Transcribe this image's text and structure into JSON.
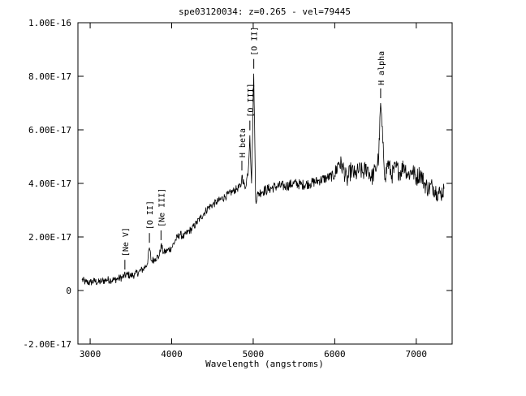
{
  "chart_data": {
    "type": "line",
    "title": "spe03120034: z=0.265 - vel=79445",
    "xlabel": "Wavelength (angstroms)",
    "ylabel": "",
    "xlim": [
      2850,
      7440
    ],
    "ylim": [
      -2e-17,
      1e-16
    ],
    "xticks": [
      3000,
      4000,
      5000,
      6000,
      7000
    ],
    "xtick_labels": [
      "3000",
      "4000",
      "5000",
      "6000",
      "7000"
    ],
    "yticks": [
      -2e-17,
      0,
      2e-17,
      4e-17,
      6e-17,
      8e-17,
      1e-16
    ],
    "ytick_labels": [
      "-2.00E-17",
      "0",
      "2.00E-17",
      "4.00E-17",
      "6.00E-17",
      "8.00E-17",
      "1.00E-16"
    ],
    "grid": false,
    "line_color": "#000000",
    "series": [
      {
        "name": "",
        "x": [
          2900,
          2950,
          3000,
          3050,
          3100,
          3150,
          3200,
          3250,
          3300,
          3350,
          3400,
          3450,
          3500,
          3550,
          3600,
          3650,
          3700,
          3727,
          3750,
          3800,
          3850,
          3869,
          3900,
          3950,
          4000,
          4050,
          4100,
          4150,
          4200,
          4250,
          4300,
          4350,
          4400,
          4450,
          4500,
          4550,
          4600,
          4650,
          4700,
          4750,
          4800,
          4850,
          4861,
          4900,
          4940,
          4959,
          4980,
          5007,
          5030,
          5060,
          5100,
          5200,
          5300,
          5400,
          5500,
          5600,
          5700,
          5800,
          5900,
          6000,
          6050,
          6100,
          6150,
          6200,
          6250,
          6300,
          6350,
          6400,
          6450,
          6500,
          6540,
          6563,
          6590,
          6620,
          6650,
          6700,
          6750,
          6800,
          6850,
          6900,
          6950,
          7000,
          7050,
          7100,
          7150,
          7200,
          7250,
          7300,
          7340
        ],
        "y": [
          4e-18,
          3e-18,
          3e-18,
          3.5e-18,
          3e-18,
          3.5e-18,
          4e-18,
          4e-18,
          4e-18,
          4.5e-18,
          5e-18,
          6e-18,
          5.5e-18,
          6e-18,
          7e-18,
          8e-18,
          1e-17,
          1.6e-17,
          1.1e-17,
          1.2e-17,
          1.3e-17,
          1.7e-17,
          1.4e-17,
          1.5e-17,
          1.6e-17,
          1.9e-17,
          2.1e-17,
          2e-17,
          2.2e-17,
          2.3e-17,
          2.5e-17,
          2.7e-17,
          2.9e-17,
          3.1e-17,
          3.2e-17,
          3.3e-17,
          3.4e-17,
          3.5e-17,
          3.6e-17,
          3.7e-17,
          3.8e-17,
          3.9e-17,
          4.3e-17,
          3.8e-17,
          4.5e-17,
          5.8e-17,
          4e-17,
          8.1e-17,
          3.4e-17,
          3.6e-17,
          3.7e-17,
          3.8e-17,
          3.9e-17,
          3.9e-17,
          4e-17,
          3.95e-17,
          4e-17,
          4.1e-17,
          4.2e-17,
          4.3e-17,
          4.8e-17,
          4.6e-17,
          4.1e-17,
          4.5e-17,
          4.3e-17,
          4.5e-17,
          4.4e-17,
          4.6e-17,
          4.2e-17,
          4.5e-17,
          5e-17,
          7e-17,
          5.5e-17,
          4.2e-17,
          4.8e-17,
          4.3e-17,
          4.6e-17,
          4.4e-17,
          4.7e-17,
          4.3e-17,
          4.5e-17,
          4.2e-17,
          4.4e-17,
          4e-17,
          3.8e-17,
          3.9e-17,
          3.7e-17,
          3.6e-17,
          3.8e-17
        ]
      }
    ],
    "annotations": [
      {
        "text": "[Ne V]",
        "x": 3426
      },
      {
        "text": "[O II]",
        "x": 3727
      },
      {
        "text": "[Ne III]",
        "x": 3869
      },
      {
        "text": "H beta",
        "x": 4861
      },
      {
        "text": "[O III]",
        "x": 4959
      },
      {
        "text": "[O II]",
        "x": 5007
      },
      {
        "text": "H alpha",
        "x": 6563
      }
    ]
  }
}
